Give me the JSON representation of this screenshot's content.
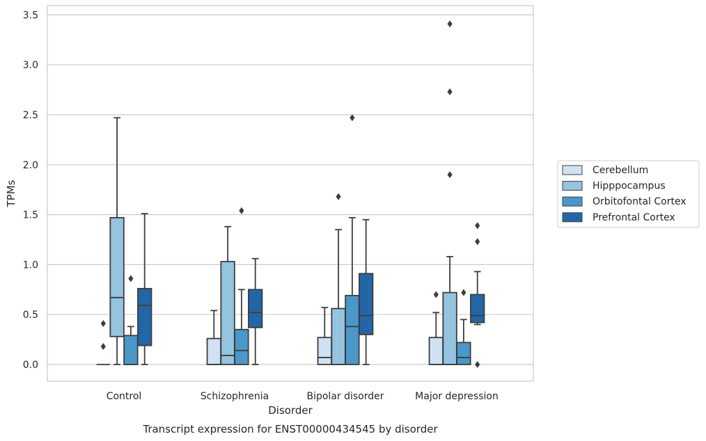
{
  "chart_data": {
    "type": "boxplot",
    "title": "",
    "caption": "Transcript expression for ENST00000434545 by disorder",
    "xlabel": "Disorder",
    "ylabel": "TPMs",
    "ylim": [
      -0.17,
      3.6
    ],
    "yticks": [
      "0.0",
      "0.5",
      "1.0",
      "1.5",
      "2.0",
      "2.5",
      "3.0",
      "3.5"
    ],
    "grid": "horizontal",
    "legend_position": "right",
    "categories": [
      "Control",
      "Schizophrenia",
      "Bipolar disorder",
      "Major depression"
    ],
    "series": [
      {
        "name": "Cerebellum",
        "color": "#d0e1f2",
        "boxes": [
          {
            "whislo": 0,
            "q1": 0,
            "med": 0,
            "q3": 0,
            "whishi": 0,
            "fliers": [
              0.41,
              0.18
            ]
          },
          {
            "whislo": 0,
            "q1": 0,
            "med": 0,
            "q3": 0.26,
            "whishi": 0.54,
            "fliers": []
          },
          {
            "whislo": 0,
            "q1": 0,
            "med": 0.07,
            "q3": 0.27,
            "whishi": 0.57,
            "fliers": []
          },
          {
            "whislo": 0,
            "q1": 0,
            "med": 0,
            "q3": 0.27,
            "whishi": 0.52,
            "fliers": [
              0.7
            ]
          }
        ]
      },
      {
        "name": "Hipppocampus",
        "color": "#94c4df",
        "boxes": [
          {
            "whislo": 0,
            "q1": 0.28,
            "med": 0.67,
            "q3": 1.47,
            "whishi": 2.47,
            "fliers": []
          },
          {
            "whislo": 0,
            "q1": 0,
            "med": 0.09,
            "q3": 1.03,
            "whishi": 1.38,
            "fliers": []
          },
          {
            "whislo": 0,
            "q1": 0,
            "med": 0,
            "q3": 0.56,
            "whishi": 1.35,
            "fliers": [
              1.68
            ]
          },
          {
            "whislo": 0,
            "q1": 0,
            "med": 0,
            "q3": 0.72,
            "whishi": 1.08,
            "fliers": [
              3.41,
              2.73,
              1.9
            ]
          }
        ]
      },
      {
        "name": "Orbitofontal Cortex",
        "color": "#4a98c9",
        "boxes": [
          {
            "whislo": 0,
            "q1": 0,
            "med": 0,
            "q3": 0.29,
            "whishi": 0.38,
            "fliers": [
              0.86
            ]
          },
          {
            "whislo": 0,
            "q1": 0,
            "med": 0.14,
            "q3": 0.35,
            "whishi": 0.75,
            "fliers": [
              1.54
            ]
          },
          {
            "whislo": 0,
            "q1": 0,
            "med": 0.38,
            "q3": 0.69,
            "whishi": 1.47,
            "fliers": [
              2.47
            ]
          },
          {
            "whislo": 0,
            "q1": 0,
            "med": 0.07,
            "q3": 0.22,
            "whishi": 0.45,
            "fliers": [
              0.72
            ]
          }
        ]
      },
      {
        "name": "Prefrontal Cortex",
        "color": "#2366a8",
        "boxes": [
          {
            "whislo": 0,
            "q1": 0.19,
            "med": 0.59,
            "q3": 0.76,
            "whishi": 1.51,
            "fliers": []
          },
          {
            "whislo": 0,
            "q1": 0.37,
            "med": 0.52,
            "q3": 0.75,
            "whishi": 1.06,
            "fliers": []
          },
          {
            "whislo": 0,
            "q1": 0.3,
            "med": 0.49,
            "q3": 0.91,
            "whishi": 1.45,
            "fliers": []
          },
          {
            "whislo": 0.4,
            "q1": 0.42,
            "med": 0.49,
            "q3": 0.7,
            "whishi": 0.93,
            "fliers": [
              1.39,
              1.23,
              0.0
            ]
          }
        ]
      }
    ]
  }
}
